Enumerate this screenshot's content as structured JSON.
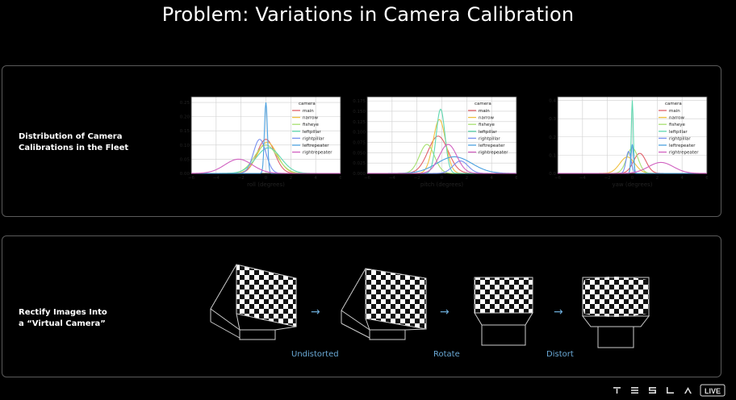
{
  "slide": {
    "title": "Problem: Variations in Camera Calibration",
    "top_label": [
      "Distribution of Camera",
      "Calibrations in the Fleet"
    ],
    "bottom_label": [
      "Rectify Images Into",
      "a “Virtual Camera”"
    ]
  },
  "steps": [
    "Undistorted",
    "Rotate",
    "Distort"
  ],
  "branding": {
    "logo_text": "TESLA",
    "badge": "LIVE"
  },
  "colors": {
    "step_text": "#6aa9d6",
    "arrow": "#6aa9d6"
  },
  "chart_data": [
    {
      "type": "line",
      "xlabel": "roll (degrees)",
      "xlim": [
        -6,
        6
      ],
      "xticks": [
        -6,
        -4,
        -2,
        0,
        2,
        4,
        6
      ],
      "ylim": [
        0,
        0.27
      ],
      "yticks": [
        0.0,
        0.05,
        0.1,
        0.15,
        0.2,
        0.25
      ],
      "grid": true,
      "legend_title": "camera",
      "legend_position": "top-right",
      "series": [
        {
          "name": "main",
          "color": "#e0606a",
          "mu": 0.0,
          "sigma": 0.7,
          "peak": 0.12
        },
        {
          "name": "narrow",
          "color": "#f0c040",
          "mu": 0.1,
          "sigma": 0.8,
          "peak": 0.11
        },
        {
          "name": "fisheye",
          "color": "#a6e070",
          "mu": 0.0,
          "sigma": 0.9,
          "peak": 0.1
        },
        {
          "name": "leftpillar",
          "color": "#60d8b0",
          "mu": 0.2,
          "sigma": 1.0,
          "peak": 0.09
        },
        {
          "name": "rightpillar",
          "color": "#7890f0",
          "mu": -0.5,
          "sigma": 0.5,
          "peak": 0.12
        },
        {
          "name": "leftrepeater",
          "color": "#4aa0e0",
          "mu": 0.0,
          "sigma": 0.12,
          "peak": 0.25
        },
        {
          "name": "rightrepeater",
          "color": "#d060c0",
          "mu": -2.2,
          "sigma": 1.1,
          "peak": 0.05
        }
      ]
    },
    {
      "type": "line",
      "xlabel": "pitch (degrees)",
      "xlim": [
        -6,
        6
      ],
      "xticks": [
        -6,
        -4,
        -2,
        0,
        2,
        4,
        6
      ],
      "ylim": [
        0,
        0.185
      ],
      "yticks": [
        0.0,
        0.025,
        0.05,
        0.075,
        0.1,
        0.125,
        0.15,
        0.175
      ],
      "grid": true,
      "legend_title": "camera",
      "legend_position": "top-right",
      "series": [
        {
          "name": "main",
          "color": "#e0606a",
          "mu": -0.3,
          "sigma": 0.8,
          "peak": 0.09
        },
        {
          "name": "narrow",
          "color": "#f0c040",
          "mu": -0.2,
          "sigma": 0.5,
          "peak": 0.13
        },
        {
          "name": "fisheye",
          "color": "#a6e070",
          "mu": -1.2,
          "sigma": 0.6,
          "peak": 0.07
        },
        {
          "name": "leftpillar",
          "color": "#60d8b0",
          "mu": -0.1,
          "sigma": 0.35,
          "peak": 0.155
        },
        {
          "name": "rightpillar",
          "color": "#7890f0",
          "mu": 1.5,
          "sigma": 0.6,
          "peak": 0.03
        },
        {
          "name": "leftrepeater",
          "color": "#4aa0e0",
          "mu": 1.0,
          "sigma": 1.4,
          "peak": 0.04
        },
        {
          "name": "rightrepeater",
          "color": "#d060c0",
          "mu": 0.5,
          "sigma": 0.7,
          "peak": 0.07
        }
      ]
    },
    {
      "type": "line",
      "xlabel": "yaw (degrees)",
      "xlim": [
        -6,
        6
      ],
      "xticks": [
        -6,
        -4,
        -2,
        0,
        2,
        4,
        6
      ],
      "ylim": [
        0,
        0.42
      ],
      "yticks": [
        0.0,
        0.1,
        0.2,
        0.3,
        0.4
      ],
      "grid": true,
      "legend_title": "camera",
      "legend_position": "top-right",
      "series": [
        {
          "name": "main",
          "color": "#e0606a",
          "mu": 0.6,
          "sigma": 0.5,
          "peak": 0.11
        },
        {
          "name": "narrow",
          "color": "#f0c040",
          "mu": -0.4,
          "sigma": 0.6,
          "peak": 0.09
        },
        {
          "name": "fisheye",
          "color": "#a6e070",
          "mu": 0.0,
          "sigma": 0.45,
          "peak": 0.14
        },
        {
          "name": "leftpillar",
          "color": "#60d8b0",
          "mu": 0.0,
          "sigma": 0.08,
          "peak": 0.4
        },
        {
          "name": "rightpillar",
          "color": "#7890f0",
          "mu": -0.3,
          "sigma": 0.2,
          "peak": 0.12
        },
        {
          "name": "leftrepeater",
          "color": "#4aa0e0",
          "mu": 0.0,
          "sigma": 0.1,
          "peak": 0.16
        },
        {
          "name": "rightrepeater",
          "color": "#d060c0",
          "mu": 2.3,
          "sigma": 1.0,
          "peak": 0.06
        }
      ]
    }
  ]
}
